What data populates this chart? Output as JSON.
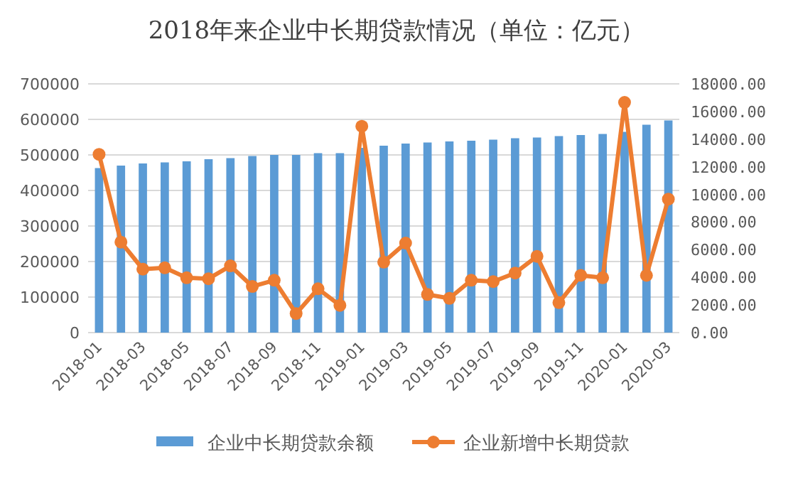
{
  "chart_data": {
    "type": "bar",
    "title": "2018年来企业中长期贷款情况（单位：亿元）",
    "categories": [
      "2018-01",
      null,
      "2018-03",
      null,
      "2018-05",
      null,
      "2018-07",
      null,
      "2018-09",
      null,
      "2018-11",
      null,
      "2019-01",
      null,
      "2019-03",
      null,
      "2019-05",
      null,
      "2019-07",
      null,
      "2019-09",
      null,
      "2019-11",
      null,
      "2020-01",
      null,
      "2020-03"
    ],
    "series": [
      {
        "name": "企业中长期贷款余额",
        "color": "#5b9bd5",
        "values": [
          463000,
          470000,
          476000,
          479000,
          482000,
          488000,
          491000,
          497000,
          500000,
          500000,
          505000,
          505000,
          520000,
          526000,
          532000,
          535000,
          538000,
          540000,
          543000,
          547000,
          549000,
          553000,
          556000,
          559000,
          565000,
          585000,
          597000
        ]
      },
      {
        "name": "企业新增中长期贷款",
        "type": "line",
        "axis": "y2",
        "color": "#ed7d31",
        "marker": "circle",
        "values": [
          12900,
          6550,
          4590,
          4690,
          3970,
          3900,
          4830,
          3340,
          3790,
          1380,
          3170,
          1970,
          14930,
          5100,
          6480,
          2760,
          2480,
          3790,
          3690,
          4310,
          5520,
          2170,
          4140,
          3970,
          16660,
          4140,
          9660
        ]
      }
    ],
    "ylim": [
      0,
      700000
    ],
    "yticks": [
      0,
      100000,
      200000,
      300000,
      400000,
      500000,
      600000,
      700000
    ],
    "y2lim": [
      0,
      18000
    ],
    "y2ticks": [
      {
        "value": 0,
        "label": "0.00"
      },
      {
        "value": 2000,
        "label": "2000.00"
      },
      {
        "value": 4000,
        "label": "4000.00"
      },
      {
        "value": 6000,
        "label": "6000.00"
      },
      {
        "value": 8000,
        "label": "8000.00"
      },
      {
        "value": 10000,
        "label": "10000.00"
      },
      {
        "value": 12000,
        "label": "12000.00"
      },
      {
        "value": 14000,
        "label": "14000.00"
      },
      {
        "value": 16000,
        "label": "16000.00"
      },
      {
        "value": 18000,
        "label": "18000.00"
      }
    ],
    "grid": "y",
    "legend": "bottom"
  }
}
